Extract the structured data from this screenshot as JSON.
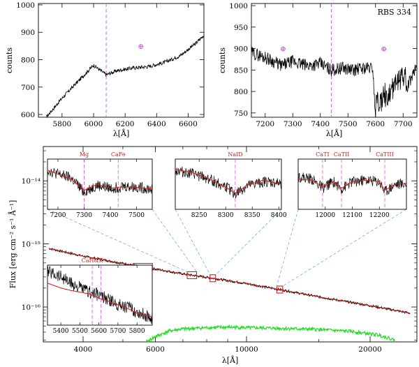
{
  "chart_data": [
    {
      "type": "line",
      "id": "top-left",
      "xlabel": "λ[Å]",
      "ylabel": "counts",
      "xlim": [
        5650,
        6700
      ],
      "ylim": [
        590,
        1005
      ],
      "xticks": [
        5800,
        6000,
        6200,
        6400,
        6600
      ],
      "yticks": [
        600,
        700,
        800,
        900,
        1000
      ],
      "vline_x": 6080,
      "telluric_marker": {
        "x": 6300,
        "y": 850,
        "symbol": "⊕"
      },
      "series": [
        {
          "name": "spectrum",
          "x": [
            5700,
            5800,
            5900,
            6000,
            6080,
            6150,
            6250,
            6350,
            6450,
            6550,
            6650,
            6700
          ],
          "y": [
            590,
            660,
            720,
            780,
            745,
            760,
            770,
            775,
            790,
            815,
            860,
            890
          ]
        }
      ]
    },
    {
      "type": "line",
      "id": "top-right",
      "title": "RBS 334",
      "xlabel": "λ[Å]",
      "ylabel": "counts",
      "xlim": [
        7150,
        7750
      ],
      "ylim": [
        740,
        1005
      ],
      "xticks": [
        7200,
        7300,
        7400,
        7500,
        7600,
        7700
      ],
      "yticks": [
        750,
        800,
        850,
        900,
        950,
        1000
      ],
      "vline_x": 7440,
      "telluric_markers": [
        {
          "x": 7265,
          "y": 900,
          "symbol": "⊕"
        },
        {
          "x": 7630,
          "y": 900,
          "symbol": "⊕"
        }
      ],
      "series": [
        {
          "name": "spectrum",
          "x": [
            7150,
            7200,
            7260,
            7300,
            7350,
            7400,
            7440,
            7480,
            7520,
            7560,
            7590,
            7600,
            7640,
            7700,
            7750
          ],
          "y": [
            890,
            880,
            860,
            870,
            860,
            865,
            850,
            855,
            850,
            855,
            855,
            740,
            745,
            790,
            860
          ]
        }
      ]
    },
    {
      "type": "line",
      "id": "main",
      "xlabel": "λ[Å]",
      "ylabel": "Flux [erg cm⁻² s⁻¹ Å⁻¹]",
      "xscale": "log",
      "yscale": "log",
      "xlim": [
        3200,
        26000
      ],
      "ylim": [
        2.8e-17,
        3.5e-14
      ],
      "xticks": [
        4000,
        6000,
        10000,
        20000
      ],
      "yticks": [
        1e-16,
        1e-15,
        1e-14
      ],
      "ytick_labels": [
        "10⁻¹⁶",
        "10⁻¹⁵",
        "10⁻¹⁴"
      ],
      "series": [
        {
          "name": "observed",
          "color": "#000000",
          "x": [
            3300,
            4000,
            5000,
            6000,
            7000,
            8300,
            10000,
            12000,
            15000,
            20000,
            25000
          ],
          "y": [
            8.5e-16,
            6.4e-16,
            4.9e-16,
            4e-16,
            3.35e-16,
            2.85e-16,
            2.35e-16,
            1.9e-16,
            1.45e-16,
            1.05e-16,
            8e-17
          ]
        },
        {
          "name": "model",
          "color": "#e02020",
          "x": [
            3300,
            4000,
            5000,
            6000,
            7000,
            8300,
            10000,
            12000,
            15000,
            20000,
            25000
          ],
          "y": [
            8.5e-16,
            6.4e-16,
            4.9e-16,
            4e-16,
            3.35e-16,
            2.85e-16,
            2.35e-16,
            1.9e-16,
            1.45e-16,
            1.05e-16,
            8e-17
          ]
        },
        {
          "name": "error",
          "color": "#20dd20",
          "x": [
            5700,
            6000,
            6500,
            7000,
            8000,
            9000,
            10000,
            12000,
            15000,
            18000,
            21000,
            23000
          ],
          "y": [
            2.8e-17,
            3.4e-17,
            4.2e-17,
            4.5e-17,
            4.7e-17,
            4.8e-17,
            4.7e-17,
            4.6e-17,
            4.4e-17,
            4.1e-17,
            3.6e-17,
            3e-17
          ]
        }
      ],
      "zoom_boxes": [
        {
          "x": [
            5300,
            5900
          ]
        },
        {
          "x": [
            8150,
            8400
          ]
        },
        {
          "x": [
            11850,
            12250
          ]
        },
        {
          "x": [
            7170,
            7560
          ]
        }
      ]
    },
    {
      "type": "line",
      "id": "inset-1",
      "xlim": [
        7160,
        7560
      ],
      "xticks": [
        7200,
        7300,
        7400,
        7500
      ],
      "lines": [
        {
          "x": 7300,
          "label": "Mg"
        },
        {
          "x": 7430,
          "label": "CaFe"
        }
      ],
      "series": [
        {
          "name": "observed",
          "x": [
            7160,
            7200,
            7250,
            7300,
            7350,
            7400,
            7450,
            7500,
            7560
          ],
          "y": [
            0.78,
            0.7,
            0.62,
            0.35,
            0.48,
            0.42,
            0.46,
            0.44,
            0.4
          ]
        },
        {
          "name": "model",
          "x": [
            7160,
            7200,
            7250,
            7300,
            7350,
            7400,
            7450,
            7500,
            7560
          ],
          "y": [
            0.78,
            0.7,
            0.6,
            0.38,
            0.5,
            0.42,
            0.45,
            0.44,
            0.4
          ]
        }
      ]
    },
    {
      "type": "line",
      "id": "inset-2",
      "xlim": [
        8205,
        8405
      ],
      "xticks": [
        8250,
        8300,
        8350,
        8400
      ],
      "lines": [
        {
          "x": 8318,
          "label": "NaID"
        }
      ],
      "series": [
        {
          "name": "observed",
          "x": [
            8205,
            8240,
            8270,
            8300,
            8318,
            8340,
            8370,
            8405
          ],
          "y": [
            0.78,
            0.7,
            0.6,
            0.45,
            0.3,
            0.45,
            0.55,
            0.5
          ]
        },
        {
          "name": "model",
          "x": [
            8205,
            8240,
            8270,
            8300,
            8318,
            8340,
            8370,
            8405
          ],
          "y": [
            0.8,
            0.72,
            0.6,
            0.44,
            0.32,
            0.48,
            0.58,
            0.5
          ]
        }
      ]
    },
    {
      "type": "line",
      "id": "inset-3",
      "xlim": [
        11900,
        12300
      ],
      "xticks": [
        12000,
        12100,
        12200
      ],
      "lines": [
        {
          "x": 11990,
          "label": "CaTI"
        },
        {
          "x": 12060,
          "label": "CaTII"
        },
        {
          "x": 12220,
          "label": "CaTIII"
        }
      ],
      "series": [
        {
          "name": "observed",
          "x": [
            11900,
            11950,
            11990,
            12030,
            12060,
            12100,
            12150,
            12200,
            12220,
            12260,
            12300
          ],
          "y": [
            0.65,
            0.6,
            0.42,
            0.55,
            0.4,
            0.55,
            0.58,
            0.55,
            0.35,
            0.5,
            0.5
          ]
        },
        {
          "name": "model",
          "x": [
            11900,
            11950,
            11990,
            12030,
            12060,
            12100,
            12150,
            12200,
            12220,
            12260,
            12300
          ],
          "y": [
            0.6,
            0.58,
            0.45,
            0.55,
            0.42,
            0.55,
            0.58,
            0.55,
            0.38,
            0.5,
            0.52
          ]
        }
      ]
    },
    {
      "type": "line",
      "id": "inset-4",
      "xlim": [
        5330,
        5880
      ],
      "xticks": [
        5400,
        5500,
        5600,
        5700,
        5800
      ],
      "lines": [
        {
          "x": 5565,
          "label": "CaH&K"
        },
        {
          "x": 5610,
          "label": ""
        }
      ],
      "series": [
        {
          "name": "observed",
          "x": [
            5330,
            5400,
            5450,
            5500,
            5550,
            5600,
            5650,
            5700,
            5750,
            5800,
            5880
          ],
          "y": [
            0.9,
            0.82,
            0.7,
            0.62,
            0.55,
            0.5,
            0.42,
            0.35,
            0.3,
            0.22,
            0.12
          ]
        },
        {
          "name": "model",
          "x": [
            5330,
            5400,
            5450,
            5500,
            5550,
            5600,
            5650,
            5700,
            5750,
            5800,
            5880
          ],
          "y": [
            0.7,
            0.62,
            0.58,
            0.55,
            0.52,
            0.45,
            0.4,
            0.34,
            0.28,
            0.2,
            0.14
          ]
        }
      ]
    }
  ]
}
